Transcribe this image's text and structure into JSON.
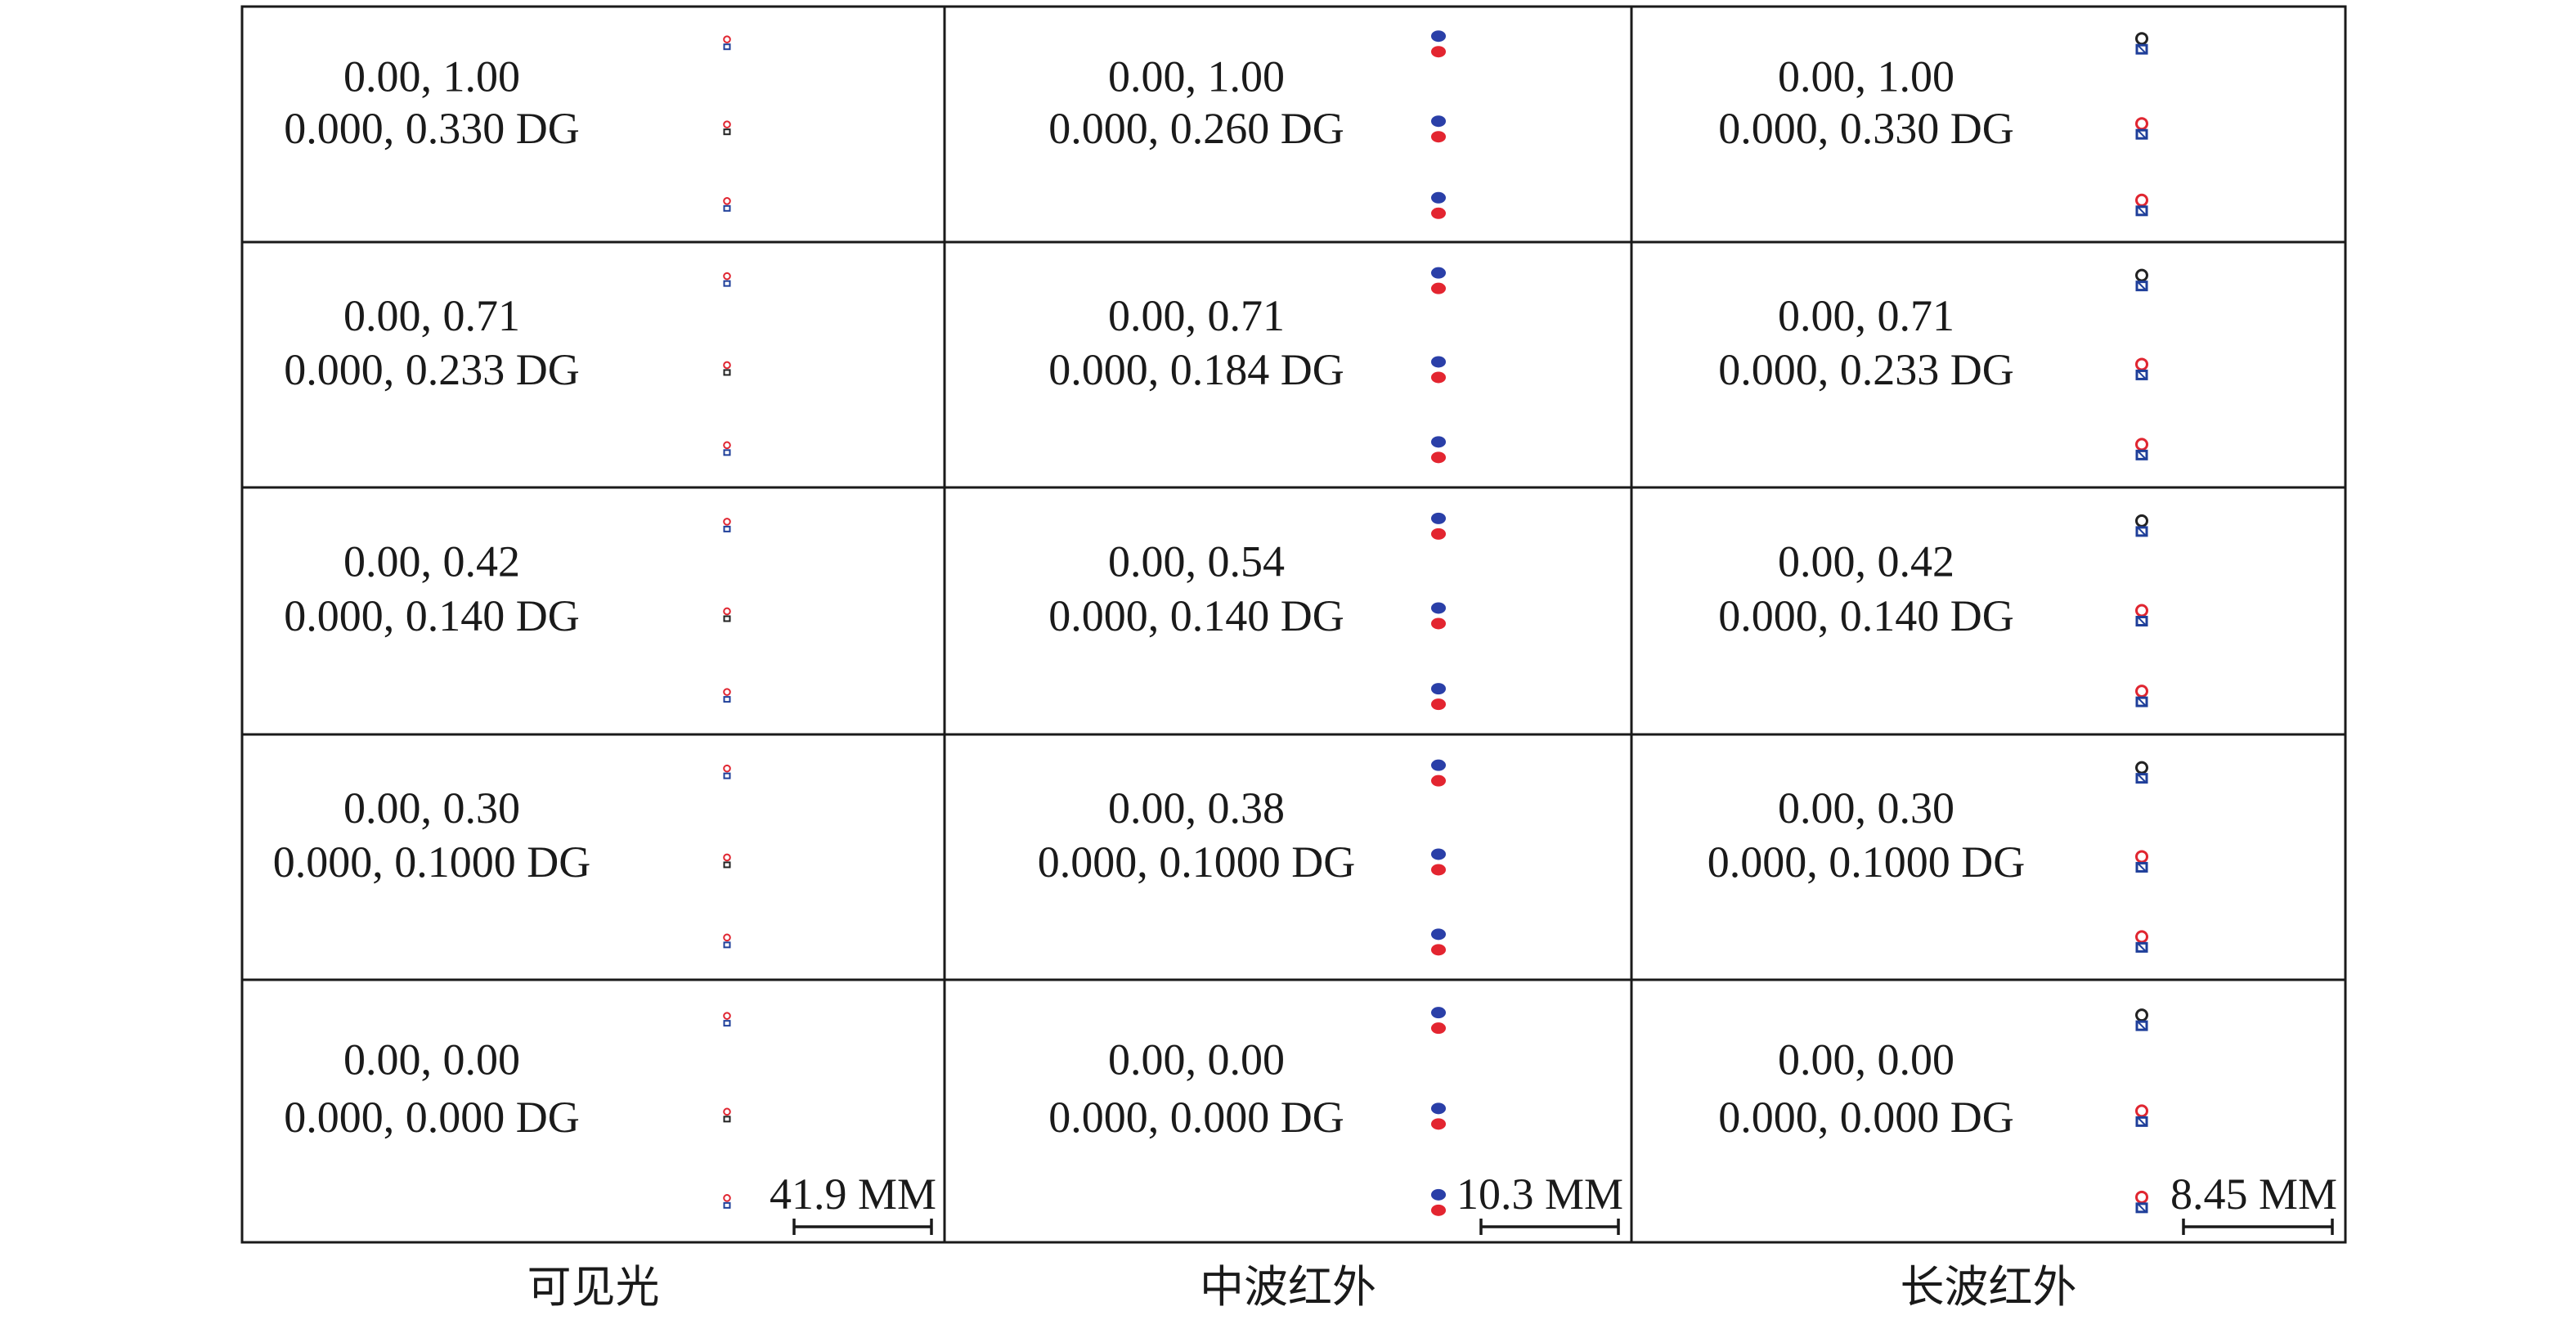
{
  "columns": [
    {
      "label": "可见光",
      "scale": "41.9 MM",
      "colors": [
        "#1f3f9a",
        "#e02631",
        "#222222"
      ],
      "style": "tiny",
      "cells": [
        {
          "field": "0.00, 1.00",
          "angle": "0.000, 0.330 DG"
        },
        {
          "field": "0.00, 0.71",
          "angle": "0.000, 0.233 DG"
        },
        {
          "field": "0.00, 0.42",
          "angle": "0.000, 0.140 DG"
        },
        {
          "field": "0.00, 0.30",
          "angle": "0.000, 0.1000 DG"
        },
        {
          "field": "0.00, 0.00",
          "angle": "0.000, 0.000 DG"
        }
      ]
    },
    {
      "label": "中波红外",
      "scale": "10.3 MM",
      "colors": [
        "#2a3fa8",
        "#e32530"
      ],
      "style": "solid",
      "cells": [
        {
          "field": "0.00, 1.00",
          "angle": "0.000, 0.260 DG"
        },
        {
          "field": "0.00, 0.71",
          "angle": "0.000, 0.184 DG"
        },
        {
          "field": "0.00, 0.54",
          "angle": "0.000, 0.140 DG"
        },
        {
          "field": "0.00, 0.38",
          "angle": "0.000, 0.1000 DG"
        },
        {
          "field": "0.00, 0.00",
          "angle": "0.000, 0.000 DG"
        }
      ]
    },
    {
      "label": "长波红外",
      "scale": "8.45 MM",
      "colors": [
        "#1f3f9a",
        "#e02631",
        "#222222"
      ],
      "style": "cluster",
      "cells": [
        {
          "field": "0.00, 1.00",
          "angle": "0.000, 0.330 DG"
        },
        {
          "field": "0.00, 0.71",
          "angle": "0.000, 0.233 DG"
        },
        {
          "field": "0.00, 0.42",
          "angle": "0.000, 0.140 DG"
        },
        {
          "field": "0.00, 0.30",
          "angle": "0.000, 0.1000 DG"
        },
        {
          "field": "0.00, 0.00",
          "angle": "0.000, 0.000 DG"
        }
      ]
    }
  ]
}
